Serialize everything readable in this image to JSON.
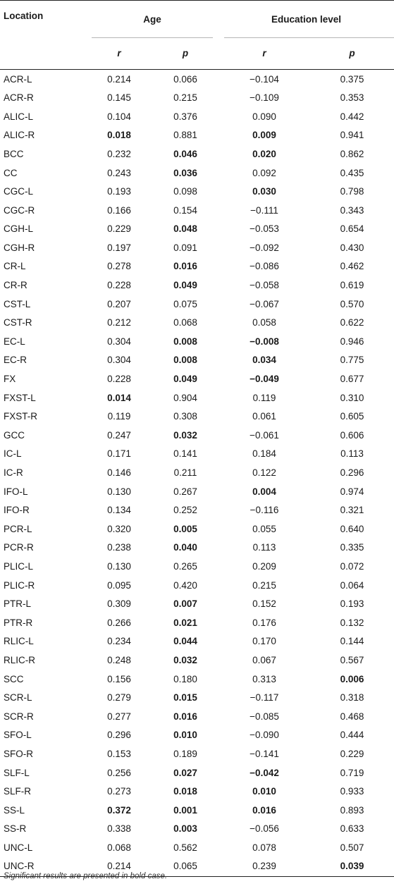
{
  "headers": {
    "location": "Location",
    "age": "Age",
    "education": "Education level",
    "r": "r",
    "p": "p"
  },
  "rows": [
    {
      "loc": "ACR-L",
      "ar": "0.214",
      "ap": "0.066",
      "er": "−0.104",
      "ep": "0.375",
      "bold": []
    },
    {
      "loc": "ACR-R",
      "ar": "0.145",
      "ap": "0.215",
      "er": "−0.109",
      "ep": "0.353",
      "bold": []
    },
    {
      "loc": "ALIC-L",
      "ar": "0.104",
      "ap": "0.376",
      "er": "0.090",
      "ep": "0.442",
      "bold": []
    },
    {
      "loc": "ALIC-R",
      "ar": "0.018",
      "ap": "0.881",
      "er": "0.009",
      "ep": "0.941",
      "bold": [
        "ar",
        "er"
      ]
    },
    {
      "loc": "BCC",
      "ar": "0.232",
      "ap": "0.046",
      "er": "0.020",
      "ep": "0.862",
      "bold": [
        "ap",
        "er"
      ]
    },
    {
      "loc": "CC",
      "ar": "0.243",
      "ap": "0.036",
      "er": "0.092",
      "ep": "0.435",
      "bold": [
        "ap"
      ]
    },
    {
      "loc": "CGC-L",
      "ar": "0.193",
      "ap": "0.098",
      "er": "0.030",
      "ep": "0.798",
      "bold": [
        "er"
      ]
    },
    {
      "loc": "CGC-R",
      "ar": "0.166",
      "ap": "0.154",
      "er": "−0.111",
      "ep": "0.343",
      "bold": []
    },
    {
      "loc": "CGH-L",
      "ar": "0.229",
      "ap": "0.048",
      "er": "−0.053",
      "ep": "0.654",
      "bold": [
        "ap"
      ]
    },
    {
      "loc": "CGH-R",
      "ar": "0.197",
      "ap": "0.091",
      "er": "−0.092",
      "ep": "0.430",
      "bold": []
    },
    {
      "loc": "CR-L",
      "ar": "0.278",
      "ap": "0.016",
      "er": "−0.086",
      "ep": "0.462",
      "bold": [
        "ap"
      ]
    },
    {
      "loc": "CR-R",
      "ar": "0.228",
      "ap": "0.049",
      "er": "−0.058",
      "ep": "0.619",
      "bold": [
        "ap"
      ]
    },
    {
      "loc": "CST-L",
      "ar": "0.207",
      "ap": "0.075",
      "er": "−0.067",
      "ep": "0.570",
      "bold": []
    },
    {
      "loc": "CST-R",
      "ar": "0.212",
      "ap": "0.068",
      "er": "0.058",
      "ep": "0.622",
      "bold": []
    },
    {
      "loc": "EC-L",
      "ar": "0.304",
      "ap": "0.008",
      "er": "−0.008",
      "ep": "0.946",
      "bold": [
        "ap",
        "er"
      ]
    },
    {
      "loc": "EC-R",
      "ar": "0.304",
      "ap": "0.008",
      "er": "0.034",
      "ep": "0.775",
      "bold": [
        "ap",
        "er"
      ]
    },
    {
      "loc": "FX",
      "ar": "0.228",
      "ap": "0.049",
      "er": "−0.049",
      "ep": "0.677",
      "bold": [
        "ap",
        "er"
      ]
    },
    {
      "loc": "FXST-L",
      "ar": "0.014",
      "ap": "0.904",
      "er": "0.119",
      "ep": "0.310",
      "bold": [
        "ar"
      ]
    },
    {
      "loc": "FXST-R",
      "ar": "0.119",
      "ap": "0.308",
      "er": "0.061",
      "ep": "0.605",
      "bold": []
    },
    {
      "loc": "GCC",
      "ar": "0.247",
      "ap": "0.032",
      "er": "−0.061",
      "ep": "0.606",
      "bold": [
        "ap"
      ]
    },
    {
      "loc": "IC-L",
      "ar": "0.171",
      "ap": "0.141",
      "er": "0.184",
      "ep": "0.113",
      "bold": []
    },
    {
      "loc": "IC-R",
      "ar": "0.146",
      "ap": "0.211",
      "er": "0.122",
      "ep": "0.296",
      "bold": []
    },
    {
      "loc": "IFO-L",
      "ar": "0.130",
      "ap": "0.267",
      "er": "0.004",
      "ep": "0.974",
      "bold": [
        "er"
      ]
    },
    {
      "loc": "IFO-R",
      "ar": "0.134",
      "ap": "0.252",
      "er": "−0.116",
      "ep": "0.321",
      "bold": []
    },
    {
      "loc": "PCR-L",
      "ar": "0.320",
      "ap": "0.005",
      "er": "0.055",
      "ep": "0.640",
      "bold": [
        "ap"
      ]
    },
    {
      "loc": "PCR-R",
      "ar": "0.238",
      "ap": "0.040",
      "er": "0.113",
      "ep": "0.335",
      "bold": [
        "ap"
      ]
    },
    {
      "loc": "PLIC-L",
      "ar": "0.130",
      "ap": "0.265",
      "er": "0.209",
      "ep": "0.072",
      "bold": []
    },
    {
      "loc": "PLIC-R",
      "ar": "0.095",
      "ap": "0.420",
      "er": "0.215",
      "ep": "0.064",
      "bold": []
    },
    {
      "loc": "PTR-L",
      "ar": "0.309",
      "ap": "0.007",
      "er": "0.152",
      "ep": "0.193",
      "bold": [
        "ap"
      ]
    },
    {
      "loc": "PTR-R",
      "ar": "0.266",
      "ap": "0.021",
      "er": "0.176",
      "ep": "0.132",
      "bold": [
        "ap"
      ]
    },
    {
      "loc": "RLIC-L",
      "ar": "0.234",
      "ap": "0.044",
      "er": "0.170",
      "ep": "0.144",
      "bold": [
        "ap"
      ]
    },
    {
      "loc": "RLIC-R",
      "ar": "0.248",
      "ap": "0.032",
      "er": "0.067",
      "ep": "0.567",
      "bold": [
        "ap"
      ]
    },
    {
      "loc": "SCC",
      "ar": "0.156",
      "ap": "0.180",
      "er": "0.313",
      "ep": "0.006",
      "bold": [
        "ep"
      ]
    },
    {
      "loc": "SCR-L",
      "ar": "0.279",
      "ap": "0.015",
      "er": "−0.117",
      "ep": "0.318",
      "bold": [
        "ap"
      ]
    },
    {
      "loc": "SCR-R",
      "ar": "0.277",
      "ap": "0.016",
      "er": "−0.085",
      "ep": "0.468",
      "bold": [
        "ap"
      ]
    },
    {
      "loc": "SFO-L",
      "ar": "0.296",
      "ap": "0.010",
      "er": "−0.090",
      "ep": "0.444",
      "bold": [
        "ap"
      ]
    },
    {
      "loc": "SFO-R",
      "ar": "0.153",
      "ap": "0.189",
      "er": "−0.141",
      "ep": "0.229",
      "bold": []
    },
    {
      "loc": "SLF-L",
      "ar": "0.256",
      "ap": "0.027",
      "er": "−0.042",
      "ep": "0.719",
      "bold": [
        "ap",
        "er"
      ]
    },
    {
      "loc": "SLF-R",
      "ar": "0.273",
      "ap": "0.018",
      "er": "0.010",
      "ep": "0.933",
      "bold": [
        "ap",
        "er"
      ]
    },
    {
      "loc": "SS-L",
      "ar": "0.372",
      "ap": "0.001",
      "er": "0.016",
      "ep": "0.893",
      "bold": [
        "ar",
        "ap",
        "er"
      ]
    },
    {
      "loc": "SS-R",
      "ar": "0.338",
      "ap": "0.003",
      "er": "−0.056",
      "ep": "0.633",
      "bold": [
        "ap"
      ]
    },
    {
      "loc": "UNC-L",
      "ar": "0.068",
      "ap": "0.562",
      "er": "0.078",
      "ep": "0.507",
      "bold": []
    },
    {
      "loc": "UNC-R",
      "ar": "0.214",
      "ap": "0.065",
      "er": "0.239",
      "ep": "0.039",
      "bold": [
        "ep"
      ]
    }
  ],
  "footnote": "Significant results are presented in bold case."
}
